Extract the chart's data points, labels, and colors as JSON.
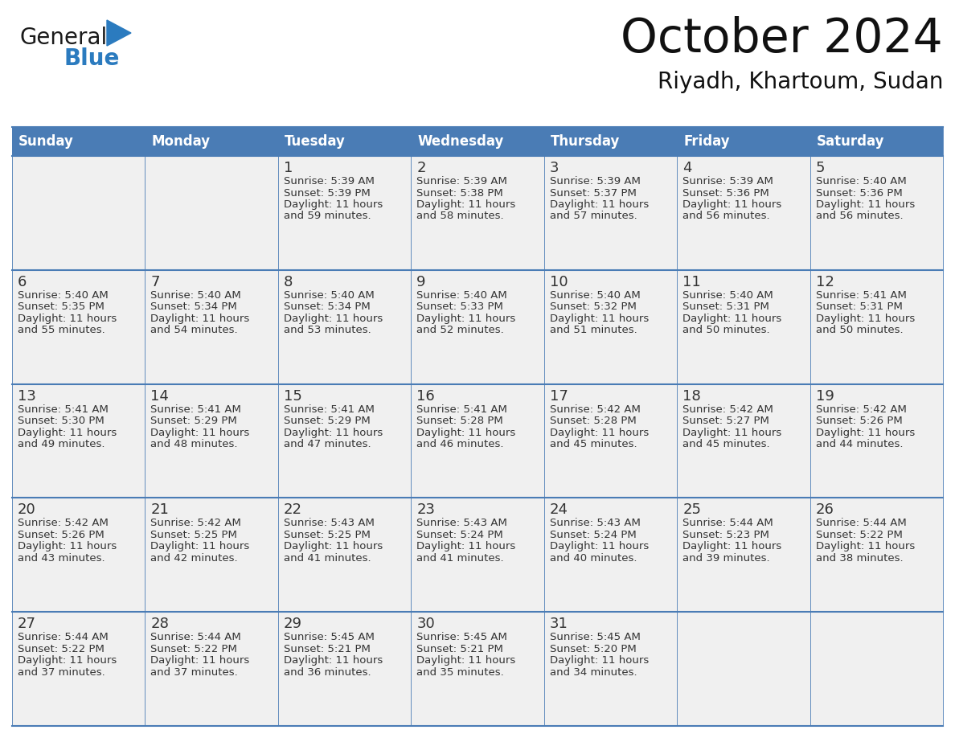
{
  "title": "October 2024",
  "subtitle": "Riyadh, Khartoum, Sudan",
  "header_bg": "#4a7cb5",
  "header_text_color": "#ffffff",
  "cell_bg": "#f0f0f0",
  "text_color": "#333333",
  "border_color": "#4a7cb5",
  "days_of_week": [
    "Sunday",
    "Monday",
    "Tuesday",
    "Wednesday",
    "Thursday",
    "Friday",
    "Saturday"
  ],
  "weeks": [
    [
      {
        "day": "",
        "lines": []
      },
      {
        "day": "",
        "lines": []
      },
      {
        "day": "1",
        "lines": [
          "Sunrise: 5:39 AM",
          "Sunset: 5:39 PM",
          "Daylight: 11 hours",
          "and 59 minutes."
        ]
      },
      {
        "day": "2",
        "lines": [
          "Sunrise: 5:39 AM",
          "Sunset: 5:38 PM",
          "Daylight: 11 hours",
          "and 58 minutes."
        ]
      },
      {
        "day": "3",
        "lines": [
          "Sunrise: 5:39 AM",
          "Sunset: 5:37 PM",
          "Daylight: 11 hours",
          "and 57 minutes."
        ]
      },
      {
        "day": "4",
        "lines": [
          "Sunrise: 5:39 AM",
          "Sunset: 5:36 PM",
          "Daylight: 11 hours",
          "and 56 minutes."
        ]
      },
      {
        "day": "5",
        "lines": [
          "Sunrise: 5:40 AM",
          "Sunset: 5:36 PM",
          "Daylight: 11 hours",
          "and 56 minutes."
        ]
      }
    ],
    [
      {
        "day": "6",
        "lines": [
          "Sunrise: 5:40 AM",
          "Sunset: 5:35 PM",
          "Daylight: 11 hours",
          "and 55 minutes."
        ]
      },
      {
        "day": "7",
        "lines": [
          "Sunrise: 5:40 AM",
          "Sunset: 5:34 PM",
          "Daylight: 11 hours",
          "and 54 minutes."
        ]
      },
      {
        "day": "8",
        "lines": [
          "Sunrise: 5:40 AM",
          "Sunset: 5:34 PM",
          "Daylight: 11 hours",
          "and 53 minutes."
        ]
      },
      {
        "day": "9",
        "lines": [
          "Sunrise: 5:40 AM",
          "Sunset: 5:33 PM",
          "Daylight: 11 hours",
          "and 52 minutes."
        ]
      },
      {
        "day": "10",
        "lines": [
          "Sunrise: 5:40 AM",
          "Sunset: 5:32 PM",
          "Daylight: 11 hours",
          "and 51 minutes."
        ]
      },
      {
        "day": "11",
        "lines": [
          "Sunrise: 5:40 AM",
          "Sunset: 5:31 PM",
          "Daylight: 11 hours",
          "and 50 minutes."
        ]
      },
      {
        "day": "12",
        "lines": [
          "Sunrise: 5:41 AM",
          "Sunset: 5:31 PM",
          "Daylight: 11 hours",
          "and 50 minutes."
        ]
      }
    ],
    [
      {
        "day": "13",
        "lines": [
          "Sunrise: 5:41 AM",
          "Sunset: 5:30 PM",
          "Daylight: 11 hours",
          "and 49 minutes."
        ]
      },
      {
        "day": "14",
        "lines": [
          "Sunrise: 5:41 AM",
          "Sunset: 5:29 PM",
          "Daylight: 11 hours",
          "and 48 minutes."
        ]
      },
      {
        "day": "15",
        "lines": [
          "Sunrise: 5:41 AM",
          "Sunset: 5:29 PM",
          "Daylight: 11 hours",
          "and 47 minutes."
        ]
      },
      {
        "day": "16",
        "lines": [
          "Sunrise: 5:41 AM",
          "Sunset: 5:28 PM",
          "Daylight: 11 hours",
          "and 46 minutes."
        ]
      },
      {
        "day": "17",
        "lines": [
          "Sunrise: 5:42 AM",
          "Sunset: 5:28 PM",
          "Daylight: 11 hours",
          "and 45 minutes."
        ]
      },
      {
        "day": "18",
        "lines": [
          "Sunrise: 5:42 AM",
          "Sunset: 5:27 PM",
          "Daylight: 11 hours",
          "and 45 minutes."
        ]
      },
      {
        "day": "19",
        "lines": [
          "Sunrise: 5:42 AM",
          "Sunset: 5:26 PM",
          "Daylight: 11 hours",
          "and 44 minutes."
        ]
      }
    ],
    [
      {
        "day": "20",
        "lines": [
          "Sunrise: 5:42 AM",
          "Sunset: 5:26 PM",
          "Daylight: 11 hours",
          "and 43 minutes."
        ]
      },
      {
        "day": "21",
        "lines": [
          "Sunrise: 5:42 AM",
          "Sunset: 5:25 PM",
          "Daylight: 11 hours",
          "and 42 minutes."
        ]
      },
      {
        "day": "22",
        "lines": [
          "Sunrise: 5:43 AM",
          "Sunset: 5:25 PM",
          "Daylight: 11 hours",
          "and 41 minutes."
        ]
      },
      {
        "day": "23",
        "lines": [
          "Sunrise: 5:43 AM",
          "Sunset: 5:24 PM",
          "Daylight: 11 hours",
          "and 41 minutes."
        ]
      },
      {
        "day": "24",
        "lines": [
          "Sunrise: 5:43 AM",
          "Sunset: 5:24 PM",
          "Daylight: 11 hours",
          "and 40 minutes."
        ]
      },
      {
        "day": "25",
        "lines": [
          "Sunrise: 5:44 AM",
          "Sunset: 5:23 PM",
          "Daylight: 11 hours",
          "and 39 minutes."
        ]
      },
      {
        "day": "26",
        "lines": [
          "Sunrise: 5:44 AM",
          "Sunset: 5:22 PM",
          "Daylight: 11 hours",
          "and 38 minutes."
        ]
      }
    ],
    [
      {
        "day": "27",
        "lines": [
          "Sunrise: 5:44 AM",
          "Sunset: 5:22 PM",
          "Daylight: 11 hours",
          "and 37 minutes."
        ]
      },
      {
        "day": "28",
        "lines": [
          "Sunrise: 5:44 AM",
          "Sunset: 5:22 PM",
          "Daylight: 11 hours",
          "and 37 minutes."
        ]
      },
      {
        "day": "29",
        "lines": [
          "Sunrise: 5:45 AM",
          "Sunset: 5:21 PM",
          "Daylight: 11 hours",
          "and 36 minutes."
        ]
      },
      {
        "day": "30",
        "lines": [
          "Sunrise: 5:45 AM",
          "Sunset: 5:21 PM",
          "Daylight: 11 hours",
          "and 35 minutes."
        ]
      },
      {
        "day": "31",
        "lines": [
          "Sunrise: 5:45 AM",
          "Sunset: 5:20 PM",
          "Daylight: 11 hours",
          "and 34 minutes."
        ]
      },
      {
        "day": "",
        "lines": []
      },
      {
        "day": "",
        "lines": []
      }
    ]
  ],
  "logo_text1": "General",
  "logo_text2": "Blue",
  "logo_color1": "#1a1a1a",
  "logo_color2": "#2b7bbf",
  "logo_triangle_color": "#2b7bbf",
  "title_fontsize": 42,
  "subtitle_fontsize": 20,
  "day_name_fontsize": 12,
  "day_num_fontsize": 13,
  "cell_text_fontsize": 9.5
}
